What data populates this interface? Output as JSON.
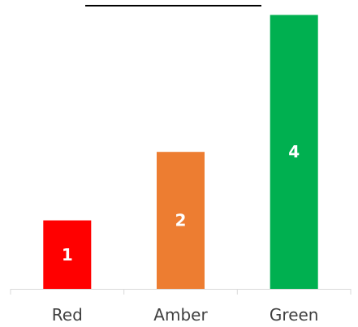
{
  "chart_data": {
    "type": "bar",
    "categories": [
      "Red",
      "Amber",
      "Green"
    ],
    "values": [
      1,
      2,
      4
    ],
    "data_labels": [
      "1",
      "2",
      "4"
    ],
    "colors": [
      "#ff0000",
      "#ed7d31",
      "#00b050"
    ],
    "ylim": [
      0,
      4.1
    ],
    "grid": false,
    "legend": "none",
    "title": "",
    "xlabel": "",
    "ylabel": ""
  }
}
